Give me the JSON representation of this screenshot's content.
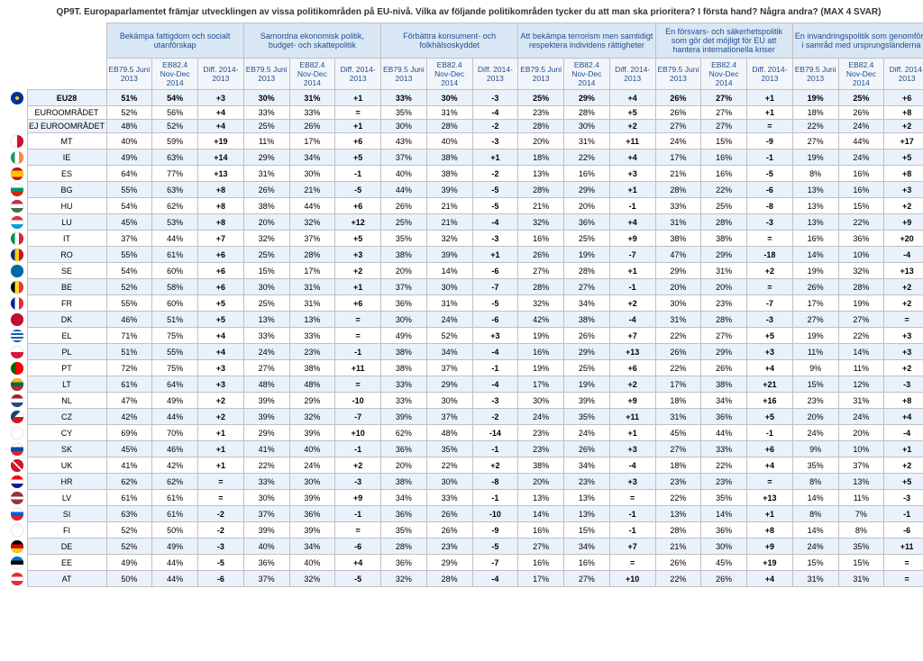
{
  "title": "QP9T. Europaparlamentet främjar utvecklingen av vissa politikområden på EU-nivå. Vilka av följande politikområden tycker du att man ska prioritera? I första hand? Några andra? (MAX 4 SVAR)",
  "group_headers": [
    "Bekämpa fattigdom och socialt utanförskap",
    "Samordna ekonomisk politik, budget- och skattepolitik",
    "Förbättra konsument- och folkhälsoskyddet",
    "Att bekämpa terrorism men samtidigt respektera individens rättigheter",
    "En försvars- och säkerhetspolitik som gör det möjligt för EU att hantera internationella kriser",
    "En invandringspolitik som genomförs i samråd med ursprungsländerna"
  ],
  "sub_headers": [
    "EB79.5 Juni 2013",
    "EB82.4 Nov-Dec 2014",
    "Diff. 2014- 2013"
  ],
  "flags": {
    "EU28": "radial-gradient(circle,#ffcc00 20%,#003399 22%)",
    "MT": "linear-gradient(90deg,#fff 50%,#cf142b 50%)",
    "IE": "linear-gradient(90deg,#169b62 33%,#fff 33%,#fff 66%,#ff883e 66%)",
    "ES": "linear-gradient(#c60b1e 25%,#ffc400 25%,#ffc400 75%,#c60b1e 75%)",
    "BG": "linear-gradient(#fff 33%,#00966e 33%,#00966e 66%,#d62612 66%)",
    "HU": "linear-gradient(#cd2a3e 33%,#fff 33%,#fff 66%,#436f4d 66%)",
    "LU": "linear-gradient(#ed2939 33%,#fff 33%,#fff 66%,#00a1de 66%)",
    "IT": "linear-gradient(90deg,#009246 33%,#fff 33%,#fff 66%,#ce2b37 66%)",
    "RO": "linear-gradient(90deg,#002b7f 33%,#fcd116 33%,#fcd116 66%,#ce1126 66%)",
    "SE": "linear-gradient(#006aa7,#006aa7)",
    "BE": "linear-gradient(90deg,#000 33%,#fdda24 33%,#fdda24 66%,#ef3340 66%)",
    "FR": "linear-gradient(90deg,#002395 33%,#fff 33%,#fff 66%,#ed2939 66%)",
    "DK": "linear-gradient(#c60c30,#c60c30)",
    "EL": "repeating-linear-gradient(#0d5eaf,#0d5eaf 2px,#fff 2px,#fff 4px)",
    "PL": "linear-gradient(#fff 50%,#dc143c 50%)",
    "PT": "linear-gradient(90deg,#006600 40%,#ff0000 40%)",
    "LT": "linear-gradient(#fdb913 33%,#006a44 33%,#006a44 66%,#c1272d 66%)",
    "NL": "linear-gradient(#ae1c28 33%,#fff 33%,#fff 66%,#21468b 66%)",
    "CZ": "linear-gradient(135deg,#11457e 40%,transparent 40%),linear-gradient(#fff 50%,#d7141a 50%)",
    "CY": "linear-gradient(#fff,#fff)",
    "SK": "linear-gradient(#fff 33%,#0b4ea2 33%,#0b4ea2 66%,#ee1c25 66%)",
    "UK": "linear-gradient(45deg,#cf142b 45%,#fff 45%,#fff 55%,#cf142b 55%),linear-gradient(-45deg,#00247d 45%,#fff 45%,#fff 55%,#00247d 55%)",
    "HR": "linear-gradient(#ff0000 33%,#fff 33%,#fff 66%,#171796 66%)",
    "LV": "linear-gradient(#9e3039 40%,#fff 40%,#fff 60%,#9e3039 60%)",
    "SI": "linear-gradient(#fff 33%,#005ce5 33%,#005ce5 66%,#ed1c24 66%)",
    "FI": "linear-gradient(#fff,#fff)",
    "DE": "linear-gradient(#000 33%,#dd0000 33%,#dd0000 66%,#ffce00 66%)",
    "EE": "linear-gradient(#0072ce 33%,#000 33%,#000 66%,#fff 66%)",
    "AT": "linear-gradient(#ed2939 33%,#fff 33%,#fff 66%,#ed2939 66%)"
  },
  "rows": [
    {
      "label": "EU28",
      "flag": "EU28",
      "bold": true,
      "cells": [
        "51%",
        "54%",
        "+3",
        "30%",
        "31%",
        "+1",
        "33%",
        "30%",
        "-3",
        "25%",
        "29%",
        "+4",
        "26%",
        "27%",
        "+1",
        "19%",
        "25%",
        "+6"
      ]
    },
    {
      "label": "EUROOMRÅDET",
      "flag": "",
      "cells": [
        "52%",
        "56%",
        "+4",
        "33%",
        "33%",
        "=",
        "35%",
        "31%",
        "-4",
        "23%",
        "28%",
        "+5",
        "26%",
        "27%",
        "+1",
        "18%",
        "26%",
        "+8"
      ]
    },
    {
      "label": "EJ EUROOMRÅDET",
      "flag": "",
      "cells": [
        "48%",
        "52%",
        "+4",
        "25%",
        "26%",
        "+1",
        "30%",
        "28%",
        "-2",
        "28%",
        "30%",
        "+2",
        "27%",
        "27%",
        "=",
        "22%",
        "24%",
        "+2"
      ]
    },
    {
      "label": "MT",
      "flag": "MT",
      "cells": [
        "40%",
        "59%",
        "+19",
        "11%",
        "17%",
        "+6",
        "43%",
        "40%",
        "-3",
        "20%",
        "31%",
        "+11",
        "24%",
        "15%",
        "-9",
        "27%",
        "44%",
        "+17"
      ]
    },
    {
      "label": "IE",
      "flag": "IE",
      "cells": [
        "49%",
        "63%",
        "+14",
        "29%",
        "34%",
        "+5",
        "37%",
        "38%",
        "+1",
        "18%",
        "22%",
        "+4",
        "17%",
        "16%",
        "-1",
        "19%",
        "24%",
        "+5"
      ]
    },
    {
      "label": "ES",
      "flag": "ES",
      "cells": [
        "64%",
        "77%",
        "+13",
        "31%",
        "30%",
        "-1",
        "40%",
        "38%",
        "-2",
        "13%",
        "16%",
        "+3",
        "21%",
        "16%",
        "-5",
        "8%",
        "16%",
        "+8"
      ]
    },
    {
      "label": "BG",
      "flag": "BG",
      "cells": [
        "55%",
        "63%",
        "+8",
        "26%",
        "21%",
        "-5",
        "44%",
        "39%",
        "-5",
        "28%",
        "29%",
        "+1",
        "28%",
        "22%",
        "-6",
        "13%",
        "16%",
        "+3"
      ]
    },
    {
      "label": "HU",
      "flag": "HU",
      "cells": [
        "54%",
        "62%",
        "+8",
        "38%",
        "44%",
        "+6",
        "26%",
        "21%",
        "-5",
        "21%",
        "20%",
        "-1",
        "33%",
        "25%",
        "-8",
        "13%",
        "15%",
        "+2"
      ]
    },
    {
      "label": "LU",
      "flag": "LU",
      "cells": [
        "45%",
        "53%",
        "+8",
        "20%",
        "32%",
        "+12",
        "25%",
        "21%",
        "-4",
        "32%",
        "36%",
        "+4",
        "31%",
        "28%",
        "-3",
        "13%",
        "22%",
        "+9"
      ]
    },
    {
      "label": "IT",
      "flag": "IT",
      "cells": [
        "37%",
        "44%",
        "+7",
        "32%",
        "37%",
        "+5",
        "35%",
        "32%",
        "-3",
        "16%",
        "25%",
        "+9",
        "38%",
        "38%",
        "=",
        "16%",
        "36%",
        "+20"
      ]
    },
    {
      "label": "RO",
      "flag": "RO",
      "cells": [
        "55%",
        "61%",
        "+6",
        "25%",
        "28%",
        "+3",
        "38%",
        "39%",
        "+1",
        "26%",
        "19%",
        "-7",
        "47%",
        "29%",
        "-18",
        "14%",
        "10%",
        "-4"
      ]
    },
    {
      "label": "SE",
      "flag": "SE",
      "cells": [
        "54%",
        "60%",
        "+6",
        "15%",
        "17%",
        "+2",
        "20%",
        "14%",
        "-6",
        "27%",
        "28%",
        "+1",
        "29%",
        "31%",
        "+2",
        "19%",
        "32%",
        "+13"
      ]
    },
    {
      "label": "BE",
      "flag": "BE",
      "cells": [
        "52%",
        "58%",
        "+6",
        "30%",
        "31%",
        "+1",
        "37%",
        "30%",
        "-7",
        "28%",
        "27%",
        "-1",
        "20%",
        "20%",
        "=",
        "26%",
        "28%",
        "+2"
      ]
    },
    {
      "label": "FR",
      "flag": "FR",
      "cells": [
        "55%",
        "60%",
        "+5",
        "25%",
        "31%",
        "+6",
        "36%",
        "31%",
        "-5",
        "32%",
        "34%",
        "+2",
        "30%",
        "23%",
        "-7",
        "17%",
        "19%",
        "+2"
      ]
    },
    {
      "label": "DK",
      "flag": "DK",
      "cells": [
        "46%",
        "51%",
        "+5",
        "13%",
        "13%",
        "=",
        "30%",
        "24%",
        "-6",
        "42%",
        "38%",
        "-4",
        "31%",
        "28%",
        "-3",
        "27%",
        "27%",
        "="
      ]
    },
    {
      "label": "EL",
      "flag": "EL",
      "cells": [
        "71%",
        "75%",
        "+4",
        "33%",
        "33%",
        "=",
        "49%",
        "52%",
        "+3",
        "19%",
        "26%",
        "+7",
        "22%",
        "27%",
        "+5",
        "19%",
        "22%",
        "+3"
      ]
    },
    {
      "label": "PL",
      "flag": "PL",
      "cells": [
        "51%",
        "55%",
        "+4",
        "24%",
        "23%",
        "-1",
        "38%",
        "34%",
        "-4",
        "16%",
        "29%",
        "+13",
        "26%",
        "29%",
        "+3",
        "11%",
        "14%",
        "+3"
      ]
    },
    {
      "label": "PT",
      "flag": "PT",
      "cells": [
        "72%",
        "75%",
        "+3",
        "27%",
        "38%",
        "+11",
        "38%",
        "37%",
        "-1",
        "19%",
        "25%",
        "+6",
        "22%",
        "26%",
        "+4",
        "9%",
        "11%",
        "+2"
      ]
    },
    {
      "label": "LT",
      "flag": "LT",
      "cells": [
        "61%",
        "64%",
        "+3",
        "48%",
        "48%",
        "=",
        "33%",
        "29%",
        "-4",
        "17%",
        "19%",
        "+2",
        "17%",
        "38%",
        "+21",
        "15%",
        "12%",
        "-3"
      ]
    },
    {
      "label": "NL",
      "flag": "NL",
      "cells": [
        "47%",
        "49%",
        "+2",
        "39%",
        "29%",
        "-10",
        "33%",
        "30%",
        "-3",
        "30%",
        "39%",
        "+9",
        "18%",
        "34%",
        "+16",
        "23%",
        "31%",
        "+8"
      ]
    },
    {
      "label": "CZ",
      "flag": "CZ",
      "cells": [
        "42%",
        "44%",
        "+2",
        "39%",
        "32%",
        "-7",
        "39%",
        "37%",
        "-2",
        "24%",
        "35%",
        "+11",
        "31%",
        "36%",
        "+5",
        "20%",
        "24%",
        "+4"
      ]
    },
    {
      "label": "CY",
      "flag": "CY",
      "cells": [
        "69%",
        "70%",
        "+1",
        "29%",
        "39%",
        "+10",
        "62%",
        "48%",
        "-14",
        "23%",
        "24%",
        "+1",
        "45%",
        "44%",
        "-1",
        "24%",
        "20%",
        "-4"
      ]
    },
    {
      "label": "SK",
      "flag": "SK",
      "cells": [
        "45%",
        "46%",
        "+1",
        "41%",
        "40%",
        "-1",
        "36%",
        "35%",
        "-1",
        "23%",
        "26%",
        "+3",
        "27%",
        "33%",
        "+6",
        "9%",
        "10%",
        "+1"
      ]
    },
    {
      "label": "UK",
      "flag": "UK",
      "cells": [
        "41%",
        "42%",
        "+1",
        "22%",
        "24%",
        "+2",
        "20%",
        "22%",
        "+2",
        "38%",
        "34%",
        "-4",
        "18%",
        "22%",
        "+4",
        "35%",
        "37%",
        "+2"
      ]
    },
    {
      "label": "HR",
      "flag": "HR",
      "cells": [
        "62%",
        "62%",
        "=",
        "33%",
        "30%",
        "-3",
        "38%",
        "30%",
        "-8",
        "20%",
        "23%",
        "+3",
        "23%",
        "23%",
        "=",
        "8%",
        "13%",
        "+5"
      ]
    },
    {
      "label": "LV",
      "flag": "LV",
      "cells": [
        "61%",
        "61%",
        "=",
        "30%",
        "39%",
        "+9",
        "34%",
        "33%",
        "-1",
        "13%",
        "13%",
        "=",
        "22%",
        "35%",
        "+13",
        "14%",
        "11%",
        "-3"
      ]
    },
    {
      "label": "SI",
      "flag": "SI",
      "cells": [
        "63%",
        "61%",
        "-2",
        "37%",
        "36%",
        "-1",
        "36%",
        "26%",
        "-10",
        "14%",
        "13%",
        "-1",
        "13%",
        "14%",
        "+1",
        "8%",
        "7%",
        "-1"
      ]
    },
    {
      "label": "FI",
      "flag": "FI",
      "cells": [
        "52%",
        "50%",
        "-2",
        "39%",
        "39%",
        "=",
        "35%",
        "26%",
        "-9",
        "16%",
        "15%",
        "-1",
        "28%",
        "36%",
        "+8",
        "14%",
        "8%",
        "-6"
      ]
    },
    {
      "label": "DE",
      "flag": "DE",
      "cells": [
        "52%",
        "49%",
        "-3",
        "40%",
        "34%",
        "-6",
        "28%",
        "23%",
        "-5",
        "27%",
        "34%",
        "+7",
        "21%",
        "30%",
        "+9",
        "24%",
        "35%",
        "+11"
      ]
    },
    {
      "label": "EE",
      "flag": "EE",
      "cells": [
        "49%",
        "44%",
        "-5",
        "36%",
        "40%",
        "+4",
        "36%",
        "29%",
        "-7",
        "16%",
        "16%",
        "=",
        "26%",
        "45%",
        "+19",
        "15%",
        "15%",
        "="
      ]
    },
    {
      "label": "AT",
      "flag": "AT",
      "cells": [
        "50%",
        "44%",
        "-6",
        "37%",
        "32%",
        "-5",
        "32%",
        "28%",
        "-4",
        "17%",
        "27%",
        "+10",
        "22%",
        "26%",
        "+4",
        "31%",
        "31%",
        "="
      ]
    }
  ]
}
